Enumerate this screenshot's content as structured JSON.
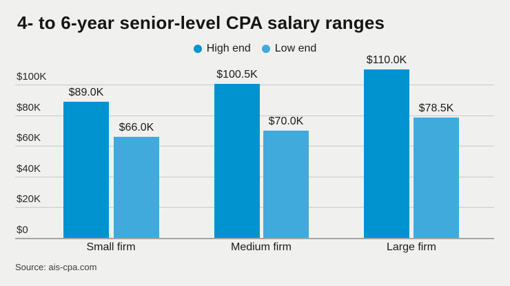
{
  "header": {
    "source": "Source: ais-cpa.com"
  },
  "chart_data": {
    "type": "bar",
    "title": "4- to 6-year senior-level CPA salary ranges",
    "categories": [
      "Small firm",
      "Medium firm",
      "Large firm"
    ],
    "series": [
      {
        "name": "High end",
        "color": "#0093d0",
        "values": [
          89.0,
          100.5,
          110.0
        ],
        "value_labels": [
          "$89.0K",
          "$100.5K",
          "$110.0K"
        ]
      },
      {
        "name": "Low end",
        "color": "#41aadd",
        "values": [
          66.0,
          70.0,
          78.5
        ],
        "value_labels": [
          "$66.0K",
          "$70.0K",
          "$78.5K"
        ]
      }
    ],
    "y_ticks": [
      {
        "value": 0,
        "label": "$0"
      },
      {
        "value": 20,
        "label": "$20K"
      },
      {
        "value": 40,
        "label": "$40K"
      },
      {
        "value": 60,
        "label": "$60K"
      },
      {
        "value": 80,
        "label": "$80K"
      },
      {
        "value": 100,
        "label": "$100K"
      }
    ],
    "ylim": [
      0,
      110
    ],
    "xlabel": "",
    "ylabel": "",
    "grid": true,
    "legend_position": "top-center"
  },
  "colors": {
    "background": "#f0f0ee",
    "gridline": "#c9c9c7",
    "axis_line": "#a5a5a3",
    "text": "#1a1a1a"
  }
}
